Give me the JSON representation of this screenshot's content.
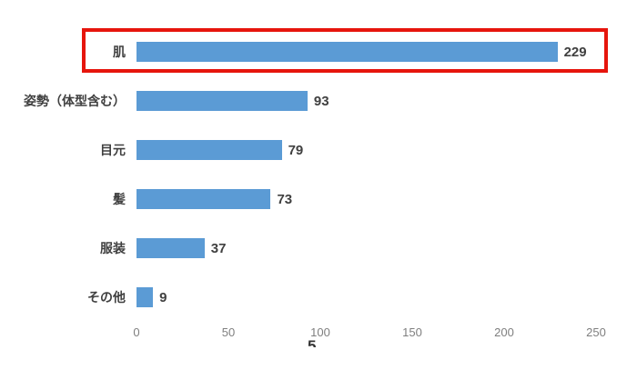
{
  "chart_data": {
    "type": "bar",
    "orientation": "horizontal",
    "title": "",
    "categories": [
      "肌",
      "姿勢（体型含む）",
      "目元",
      "髪",
      "服装",
      "その他"
    ],
    "values": [
      229,
      93,
      79,
      73,
      37,
      9
    ],
    "value_labels": [
      "229",
      "93",
      "79",
      "73",
      "37",
      "9"
    ],
    "xlim": [
      0,
      250
    ],
    "x_ticks": [
      0,
      50,
      100,
      150,
      200,
      250
    ],
    "bar_color": "#5B9BD5",
    "value_label_color": "#404040",
    "category_label_color": "#404040",
    "tick_label_color": "#7F7F7F",
    "grid": false,
    "legend": false,
    "highlight": {
      "category_index": 0,
      "category": "肌",
      "style": "red-outline-box",
      "box_color": "#E6150D"
    }
  },
  "caption_fragment": "5"
}
